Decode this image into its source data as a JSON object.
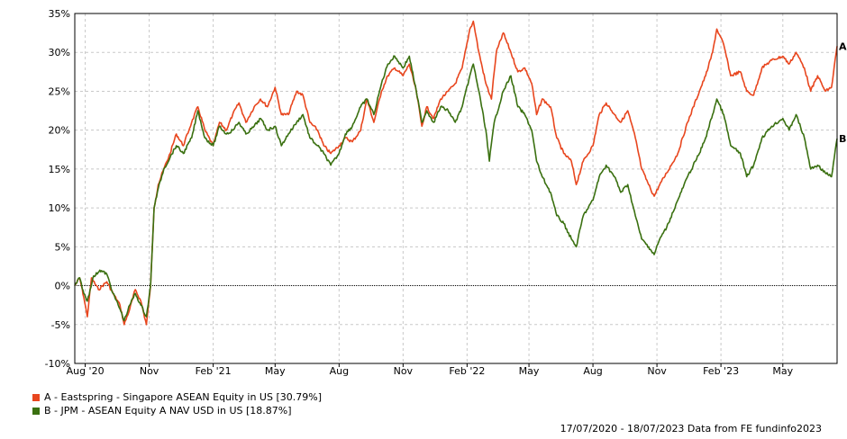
{
  "chart_data": {
    "type": "line",
    "title": "",
    "xlabel": "",
    "ylabel": "",
    "ylim": [
      -10,
      35
    ],
    "y_ticks": [
      {
        "value": -10,
        "label": "-10%"
      },
      {
        "value": -5,
        "label": "-5%"
      },
      {
        "value": 0,
        "label": "0%"
      },
      {
        "value": 5,
        "label": "5%"
      },
      {
        "value": 10,
        "label": "10%"
      },
      {
        "value": 15,
        "label": "15%"
      },
      {
        "value": 20,
        "label": "20%"
      },
      {
        "value": 25,
        "label": "25%"
      },
      {
        "value": 30,
        "label": "30%"
      },
      {
        "value": 35,
        "label": "35%"
      }
    ],
    "x_range": [
      "2020-07-17",
      "2023-07-18"
    ],
    "x_ticks": [
      {
        "date": "2020-08-01",
        "label": "Aug '20"
      },
      {
        "date": "2020-11-01",
        "label": "Nov"
      },
      {
        "date": "2021-02-01",
        "label": "Feb '21"
      },
      {
        "date": "2021-05-01",
        "label": "May"
      },
      {
        "date": "2021-08-01",
        "label": "Aug"
      },
      {
        "date": "2021-11-01",
        "label": "Nov"
      },
      {
        "date": "2022-02-01",
        "label": "Feb '22"
      },
      {
        "date": "2022-05-01",
        "label": "May"
      },
      {
        "date": "2022-08-01",
        "label": "Aug"
      },
      {
        "date": "2022-11-01",
        "label": "Nov"
      },
      {
        "date": "2023-02-01",
        "label": "Feb '23"
      },
      {
        "date": "2023-05-01",
        "label": "May"
      }
    ],
    "grid": true,
    "legend_position": "bottom-left",
    "series": [
      {
        "name": "A - Eastspring - Singapore ASEAN Equity in US [30.79%]",
        "end_label": "A",
        "color": "#e8461e",
        "points": [
          [
            "2020-07-17",
            0.0
          ],
          [
            "2020-07-24",
            1.0
          ],
          [
            "2020-07-30",
            -1.5
          ],
          [
            "2020-08-04",
            -4.0
          ],
          [
            "2020-08-10",
            1.0
          ],
          [
            "2020-08-20",
            -0.5
          ],
          [
            "2020-09-01",
            0.5
          ],
          [
            "2020-09-10",
            -1.0
          ],
          [
            "2020-09-20",
            -2.5
          ],
          [
            "2020-09-26",
            -5.0
          ],
          [
            "2020-10-04",
            -3.0
          ],
          [
            "2020-10-12",
            -0.5
          ],
          [
            "2020-10-20",
            -2.0
          ],
          [
            "2020-10-28",
            -5.0
          ],
          [
            "2020-11-03",
            0.0
          ],
          [
            "2020-11-08",
            10.0
          ],
          [
            "2020-11-14",
            13.0
          ],
          [
            "2020-11-22",
            15.0
          ],
          [
            "2020-12-01",
            17.0
          ],
          [
            "2020-12-10",
            19.5
          ],
          [
            "2020-12-20",
            18.0
          ],
          [
            "2021-01-01",
            21.0
          ],
          [
            "2021-01-10",
            23.0
          ],
          [
            "2021-01-20",
            20.0
          ],
          [
            "2021-02-01",
            18.0
          ],
          [
            "2021-02-10",
            21.0
          ],
          [
            "2021-02-20",
            20.0
          ],
          [
            "2021-03-01",
            22.0
          ],
          [
            "2021-03-10",
            23.5
          ],
          [
            "2021-03-20",
            21.0
          ],
          [
            "2021-04-01",
            23.0
          ],
          [
            "2021-04-10",
            24.0
          ],
          [
            "2021-04-20",
            23.0
          ],
          [
            "2021-05-01",
            25.5
          ],
          [
            "2021-05-10",
            22.0
          ],
          [
            "2021-05-20",
            22.0
          ],
          [
            "2021-06-01",
            25.0
          ],
          [
            "2021-06-10",
            24.5
          ],
          [
            "2021-06-20",
            21.0
          ],
          [
            "2021-07-01",
            20.0
          ],
          [
            "2021-07-10",
            18.0
          ],
          [
            "2021-07-20",
            17.0
          ],
          [
            "2021-08-01",
            18.0
          ],
          [
            "2021-08-10",
            19.0
          ],
          [
            "2021-08-20",
            18.5
          ],
          [
            "2021-09-01",
            20.0
          ],
          [
            "2021-09-10",
            24.0
          ],
          [
            "2021-09-20",
            21.0
          ],
          [
            "2021-10-01",
            25.0
          ],
          [
            "2021-10-10",
            27.0
          ],
          [
            "2021-10-20",
            28.0
          ],
          [
            "2021-11-01",
            27.0
          ],
          [
            "2021-11-10",
            28.5
          ],
          [
            "2021-11-20",
            25.0
          ],
          [
            "2021-11-28",
            20.5
          ],
          [
            "2021-12-05",
            23.0
          ],
          [
            "2021-12-15",
            21.5
          ],
          [
            "2021-12-25",
            24.0
          ],
          [
            "2022-01-05",
            25.0
          ],
          [
            "2022-01-15",
            26.0
          ],
          [
            "2022-01-25",
            28.0
          ],
          [
            "2022-02-05",
            33.0
          ],
          [
            "2022-02-10",
            34.0
          ],
          [
            "2022-02-18",
            30.0
          ],
          [
            "2022-02-28",
            26.0
          ],
          [
            "2022-03-08",
            24.0
          ],
          [
            "2022-03-15",
            30.0
          ],
          [
            "2022-03-25",
            32.5
          ],
          [
            "2022-04-05",
            30.0
          ],
          [
            "2022-04-15",
            27.5
          ],
          [
            "2022-04-25",
            28.0
          ],
          [
            "2022-05-05",
            26.0
          ],
          [
            "2022-05-12",
            22.0
          ],
          [
            "2022-05-20",
            24.0
          ],
          [
            "2022-06-01",
            23.0
          ],
          [
            "2022-06-10",
            19.0
          ],
          [
            "2022-06-20",
            17.0
          ],
          [
            "2022-07-01",
            16.0
          ],
          [
            "2022-07-08",
            13.0
          ],
          [
            "2022-07-18",
            16.0
          ],
          [
            "2022-08-01",
            18.0
          ],
          [
            "2022-08-10",
            22.0
          ],
          [
            "2022-08-20",
            23.5
          ],
          [
            "2022-09-01",
            22.0
          ],
          [
            "2022-09-10",
            21.0
          ],
          [
            "2022-09-20",
            22.5
          ],
          [
            "2022-10-01",
            19.0
          ],
          [
            "2022-10-10",
            15.0
          ],
          [
            "2022-10-20",
            13.0
          ],
          [
            "2022-10-28",
            11.5
          ],
          [
            "2022-11-05",
            13.0
          ],
          [
            "2022-11-15",
            14.5
          ],
          [
            "2022-12-01",
            17.0
          ],
          [
            "2022-12-15",
            21.0
          ],
          [
            "2023-01-01",
            25.0
          ],
          [
            "2023-01-10",
            27.0
          ],
          [
            "2023-01-20",
            30.0
          ],
          [
            "2023-01-26",
            33.0
          ],
          [
            "2023-02-05",
            31.0
          ],
          [
            "2023-02-15",
            27.0
          ],
          [
            "2023-03-01",
            27.5
          ],
          [
            "2023-03-10",
            25.0
          ],
          [
            "2023-03-20",
            24.5
          ],
          [
            "2023-04-01",
            28.0
          ],
          [
            "2023-04-15",
            29.0
          ],
          [
            "2023-05-01",
            29.5
          ],
          [
            "2023-05-10",
            28.5
          ],
          [
            "2023-05-20",
            30.0
          ],
          [
            "2023-06-01",
            28.0
          ],
          [
            "2023-06-10",
            25.0
          ],
          [
            "2023-06-20",
            27.0
          ],
          [
            "2023-07-01",
            25.0
          ],
          [
            "2023-07-10",
            25.5
          ],
          [
            "2023-07-18",
            30.8
          ]
        ]
      },
      {
        "name": "B - JPM - ASEAN Equity A NAV USD in US [18.87%]",
        "end_label": "B",
        "color": "#3a7010",
        "points": [
          [
            "2020-07-17",
            0.0
          ],
          [
            "2020-07-24",
            1.0
          ],
          [
            "2020-07-30",
            -1.0
          ],
          [
            "2020-08-04",
            -2.0
          ],
          [
            "2020-08-12",
            1.0
          ],
          [
            "2020-08-22",
            2.0
          ],
          [
            "2020-09-01",
            1.5
          ],
          [
            "2020-09-10",
            -1.0
          ],
          [
            "2020-09-20",
            -3.0
          ],
          [
            "2020-09-26",
            -4.5
          ],
          [
            "2020-10-04",
            -2.5
          ],
          [
            "2020-10-12",
            -1.0
          ],
          [
            "2020-10-20",
            -2.5
          ],
          [
            "2020-10-28",
            -4.0
          ],
          [
            "2020-11-03",
            0.0
          ],
          [
            "2020-11-08",
            10.0
          ],
          [
            "2020-11-14",
            12.5
          ],
          [
            "2020-11-22",
            15.0
          ],
          [
            "2020-12-01",
            16.5
          ],
          [
            "2020-12-10",
            18.0
          ],
          [
            "2020-12-20",
            17.0
          ],
          [
            "2021-01-01",
            19.0
          ],
          [
            "2021-01-10",
            22.5
          ],
          [
            "2021-01-20",
            19.0
          ],
          [
            "2021-02-01",
            18.0
          ],
          [
            "2021-02-10",
            20.5
          ],
          [
            "2021-02-20",
            19.5
          ],
          [
            "2021-03-01",
            20.0
          ],
          [
            "2021-03-10",
            21.0
          ],
          [
            "2021-03-20",
            19.5
          ],
          [
            "2021-04-01",
            20.5
          ],
          [
            "2021-04-10",
            21.5
          ],
          [
            "2021-04-20",
            20.0
          ],
          [
            "2021-05-01",
            20.5
          ],
          [
            "2021-05-10",
            18.0
          ],
          [
            "2021-05-20",
            19.5
          ],
          [
            "2021-06-01",
            21.0
          ],
          [
            "2021-06-10",
            22.0
          ],
          [
            "2021-06-20",
            19.0
          ],
          [
            "2021-07-01",
            18.0
          ],
          [
            "2021-07-10",
            17.0
          ],
          [
            "2021-07-20",
            15.5
          ],
          [
            "2021-08-01",
            17.0
          ],
          [
            "2021-08-10",
            19.5
          ],
          [
            "2021-08-20",
            20.5
          ],
          [
            "2021-09-01",
            23.0
          ],
          [
            "2021-09-10",
            24.0
          ],
          [
            "2021-09-20",
            22.0
          ],
          [
            "2021-10-01",
            26.0
          ],
          [
            "2021-10-10",
            28.5
          ],
          [
            "2021-10-20",
            29.5
          ],
          [
            "2021-11-01",
            28.0
          ],
          [
            "2021-11-10",
            29.5
          ],
          [
            "2021-11-20",
            25.0
          ],
          [
            "2021-11-28",
            21.0
          ],
          [
            "2021-12-05",
            22.5
          ],
          [
            "2021-12-15",
            21.0
          ],
          [
            "2021-12-25",
            23.0
          ],
          [
            "2022-01-05",
            22.5
          ],
          [
            "2022-01-15",
            21.0
          ],
          [
            "2022-01-25",
            23.0
          ],
          [
            "2022-02-05",
            27.0
          ],
          [
            "2022-02-10",
            28.5
          ],
          [
            "2022-02-18",
            25.0
          ],
          [
            "2022-02-28",
            20.0
          ],
          [
            "2022-03-05",
            16.0
          ],
          [
            "2022-03-12",
            21.0
          ],
          [
            "2022-03-25",
            25.0
          ],
          [
            "2022-04-05",
            27.0
          ],
          [
            "2022-04-15",
            23.0
          ],
          [
            "2022-04-25",
            22.0
          ],
          [
            "2022-05-05",
            20.0
          ],
          [
            "2022-05-12",
            16.0
          ],
          [
            "2022-05-20",
            14.0
          ],
          [
            "2022-06-01",
            12.0
          ],
          [
            "2022-06-10",
            9.0
          ],
          [
            "2022-06-20",
            8.0
          ],
          [
            "2022-07-01",
            6.0
          ],
          [
            "2022-07-08",
            5.0
          ],
          [
            "2022-07-18",
            9.0
          ],
          [
            "2022-08-01",
            11.0
          ],
          [
            "2022-08-10",
            14.0
          ],
          [
            "2022-08-20",
            15.5
          ],
          [
            "2022-09-01",
            14.0
          ],
          [
            "2022-09-10",
            12.0
          ],
          [
            "2022-09-20",
            13.0
          ],
          [
            "2022-10-01",
            9.0
          ],
          [
            "2022-10-10",
            6.0
          ],
          [
            "2022-10-20",
            5.0
          ],
          [
            "2022-10-28",
            4.0
          ],
          [
            "2022-11-05",
            6.0
          ],
          [
            "2022-11-15",
            7.5
          ],
          [
            "2022-12-01",
            11.0
          ],
          [
            "2022-12-15",
            14.0
          ],
          [
            "2023-01-01",
            17.0
          ],
          [
            "2023-01-10",
            19.0
          ],
          [
            "2023-01-20",
            22.0
          ],
          [
            "2023-01-26",
            24.0
          ],
          [
            "2023-02-05",
            22.0
          ],
          [
            "2023-02-15",
            18.0
          ],
          [
            "2023-03-01",
            17.0
          ],
          [
            "2023-03-10",
            14.0
          ],
          [
            "2023-03-20",
            15.5
          ],
          [
            "2023-04-01",
            19.0
          ],
          [
            "2023-04-15",
            20.5
          ],
          [
            "2023-05-01",
            21.5
          ],
          [
            "2023-05-10",
            20.0
          ],
          [
            "2023-05-20",
            22.0
          ],
          [
            "2023-06-01",
            19.0
          ],
          [
            "2023-06-10",
            15.0
          ],
          [
            "2023-06-20",
            15.5
          ],
          [
            "2023-07-01",
            14.5
          ],
          [
            "2023-07-10",
            14.0
          ],
          [
            "2023-07-18",
            18.9
          ]
        ]
      }
    ]
  },
  "footer": {
    "text": "17/07/2020 - 18/07/2023 Data from FE fundinfo2023"
  }
}
